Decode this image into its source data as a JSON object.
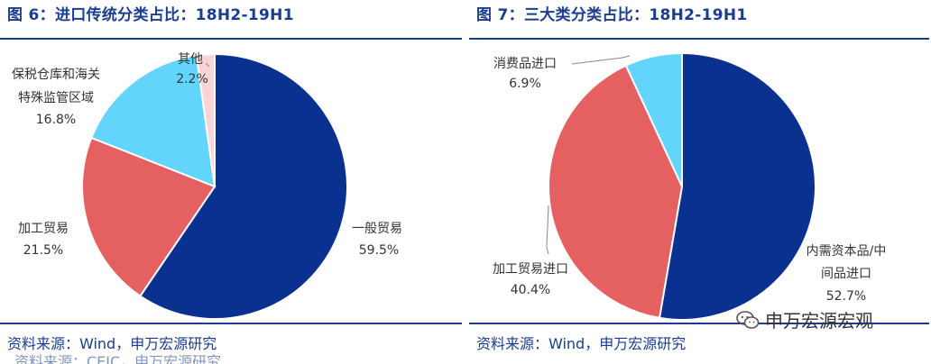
{
  "chart_data": [
    {
      "type": "pie",
      "title": "图 6：进口传统分类占比：18H2-19H1",
      "source": "资料来源：Wind，申万宏源研究",
      "source_ghost": "资料来源：CEIC，申万宏源研究",
      "slices": [
        {
          "label": "一般贸易",
          "value": 59.5,
          "value_label": "59.5%",
          "color": "#0a318f"
        },
        {
          "label": "加工贸易",
          "value": 21.5,
          "value_label": "21.5%",
          "color": "#e56161"
        },
        {
          "label": "保税仓库和海关特殊监管区域",
          "label_lines": [
            "保税仓库和海关",
            "特殊监管区域"
          ],
          "value": 16.8,
          "value_label": "16.8%",
          "color": "#63d5fc"
        },
        {
          "label": "其他",
          "value": 2.2,
          "value_label": "2.2%",
          "color": "#fbd5d5"
        }
      ]
    },
    {
      "type": "pie",
      "title": "图 7：三大类分类占比：18H2-19H1",
      "source": "资料来源：Wind，申万宏源研究",
      "slices": [
        {
          "label": "内需资本品/中间品进口",
          "label_lines": [
            "内需资本品/中",
            "间品进口"
          ],
          "value": 52.7,
          "value_label": "52.7%",
          "color": "#0a318f"
        },
        {
          "label": "加工贸易进口",
          "value": 40.4,
          "value_label": "40.4%",
          "color": "#e56161"
        },
        {
          "label": "消费品进口",
          "value": 6.9,
          "value_label": "6.9%",
          "color": "#63d5fc"
        }
      ]
    }
  ],
  "watermark": {
    "text": "申万宏源宏观",
    "icon": "wechat-icon"
  }
}
